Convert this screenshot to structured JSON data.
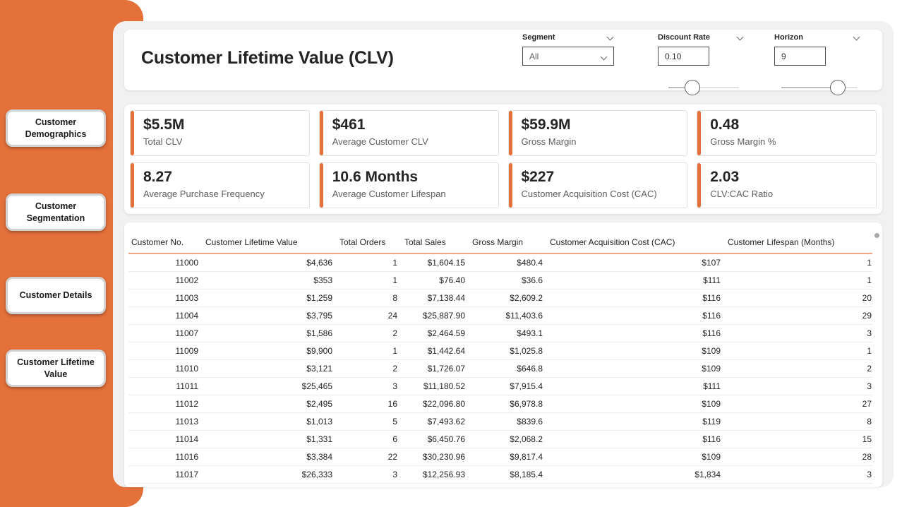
{
  "colors": {
    "accent": "#E4703A",
    "table_header_underline": "#F2A583",
    "canvas_background": "#F1F1F1"
  },
  "sidebar": {
    "items": [
      {
        "label": "Customer Demographics"
      },
      {
        "label": "Customer Segmentation"
      },
      {
        "label": "Customer Details"
      },
      {
        "label": "Customer Lifetime Value"
      }
    ]
  },
  "header": {
    "title": "Customer Lifetime Value (CLV)",
    "filters": {
      "segment": {
        "label": "Segment",
        "value": "All"
      },
      "discount_rate": {
        "label": "Discount Rate",
        "value": "0.10"
      },
      "horizon": {
        "label": "Horizon",
        "value": "9"
      }
    }
  },
  "kpis": [
    {
      "value": "$5.5M",
      "label": "Total CLV"
    },
    {
      "value": "$461",
      "label": "Average Customer CLV"
    },
    {
      "value": "$59.9M",
      "label": "Gross Margin"
    },
    {
      "value": "0.48",
      "label": "Gross Margin %"
    },
    {
      "value": "8.27",
      "label": "Average Purchase Frequency"
    },
    {
      "value": "10.6 Months",
      "label": "Average Customer Lifespan"
    },
    {
      "value": "$227",
      "label": "Customer Acquisition Cost (CAC)"
    },
    {
      "value": "2.03",
      "label": "CLV:CAC Ratio"
    }
  ],
  "table": {
    "columns": [
      "Customer No.",
      "Customer Lifetime Value",
      "Total Orders",
      "Total Sales",
      "Gross Margin",
      "Customer Acquisition Cost (CAC)",
      "Customer Lifespan (Months)"
    ],
    "rows": [
      [
        "11000",
        "$4,636",
        "1",
        "$1,604.15",
        "$480.4",
        "$107",
        "1"
      ],
      [
        "11002",
        "$353",
        "1",
        "$76.40",
        "$36.6",
        "$111",
        "1"
      ],
      [
        "11003",
        "$1,259",
        "8",
        "$7,138.44",
        "$2,609.2",
        "$116",
        "20"
      ],
      [
        "11004",
        "$3,795",
        "24",
        "$25,887.90",
        "$11,403.6",
        "$116",
        "29"
      ],
      [
        "11007",
        "$1,586",
        "2",
        "$2,464.59",
        "$493.1",
        "$116",
        "3"
      ],
      [
        "11009",
        "$9,900",
        "1",
        "$1,442.64",
        "$1,025.8",
        "$109",
        "1"
      ],
      [
        "11010",
        "$3,121",
        "2",
        "$1,726.07",
        "$646.8",
        "$109",
        "2"
      ],
      [
        "11011",
        "$25,465",
        "3",
        "$11,180.52",
        "$7,915.4",
        "$111",
        "3"
      ],
      [
        "11012",
        "$2,495",
        "16",
        "$22,096.80",
        "$6,978.8",
        "$109",
        "27"
      ],
      [
        "11013",
        "$1,013",
        "5",
        "$7,493.62",
        "$839.6",
        "$119",
        "8"
      ],
      [
        "11014",
        "$1,331",
        "6",
        "$6,450.76",
        "$2,068.2",
        "$116",
        "15"
      ],
      [
        "11016",
        "$3,384",
        "22",
        "$30,230.96",
        "$9,817.4",
        "$109",
        "28"
      ],
      [
        "11017",
        "$26,333",
        "3",
        "$12,256.93",
        "$8,185.4",
        "$1,834",
        "3"
      ]
    ]
  }
}
